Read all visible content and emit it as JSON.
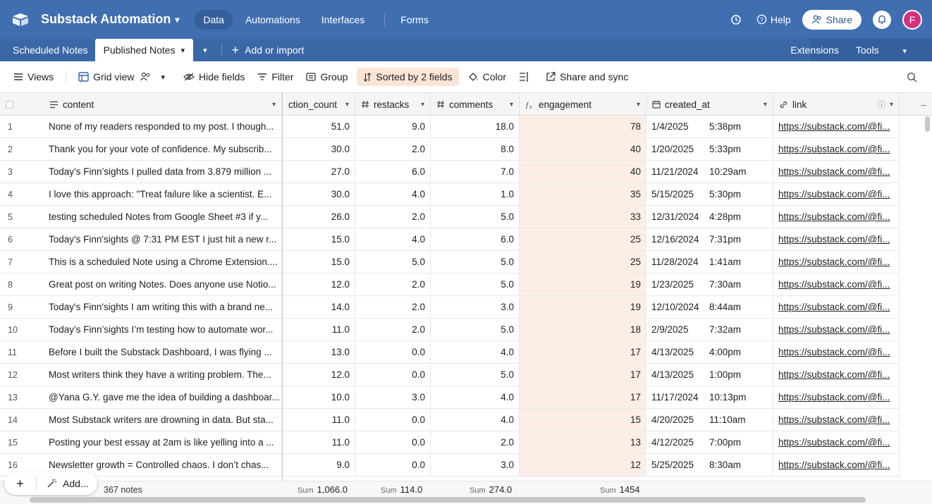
{
  "app": {
    "base_name": "Substack Automation",
    "nav": [
      "Data",
      "Automations",
      "Interfaces",
      "Forms"
    ],
    "help": "Help",
    "share": "Share",
    "avatar_letter": "F"
  },
  "tables": {
    "tabs": [
      "Scheduled Notes",
      "Published Notes"
    ],
    "add_or_import": "Add or import",
    "extensions": "Extensions",
    "tools": "Tools"
  },
  "toolbar": {
    "views": "Views",
    "grid_view": "Grid view",
    "hide_fields": "Hide fields",
    "filter": "Filter",
    "group": "Group",
    "sorted": "Sorted by 2 fields",
    "color": "Color",
    "share_sync": "Share and sync"
  },
  "columns": {
    "content": "content",
    "reaction_count": "ction_count",
    "restacks": "restacks",
    "comments": "comments",
    "engagement": "engagement",
    "created_at": "created_at",
    "link": "link"
  },
  "rows": [
    {
      "n": "1",
      "content": "None of my readers responded to my post. I though...",
      "reactions": "51.0",
      "restacks": "9.0",
      "comments": "18.0",
      "engagement": "78",
      "date": "1/4/2025",
      "time": "5:38pm",
      "link": "https://substack.com/@fi..."
    },
    {
      "n": "2",
      "content": "Thank you for your vote of confidence. My subscrib...",
      "reactions": "30.0",
      "restacks": "2.0",
      "comments": "8.0",
      "engagement": "40",
      "date": "1/20/2025",
      "time": "5:33pm",
      "link": "https://substack.com/@fi..."
    },
    {
      "n": "3",
      "content": "Today’s Finn’sights I pulled data from 3.879 million ...",
      "reactions": "27.0",
      "restacks": "6.0",
      "comments": "7.0",
      "engagement": "40",
      "date": "11/21/2024",
      "time": "10:29am",
      "link": "https://substack.com/@fi..."
    },
    {
      "n": "4",
      "content": "I love this approach: \"Treat failure like a scientist.  E...",
      "reactions": "30.0",
      "restacks": "4.0",
      "comments": "1.0",
      "engagement": "35",
      "date": "5/15/2025",
      "time": "5:30pm",
      "link": "https://substack.com/@fi..."
    },
    {
      "n": "5",
      "content": "testing scheduled Notes from Google Sheet #3 if y...",
      "reactions": "26.0",
      "restacks": "2.0",
      "comments": "5.0",
      "engagement": "33",
      "date": "12/31/2024",
      "time": "4:28pm",
      "link": "https://substack.com/@fi..."
    },
    {
      "n": "6",
      "content": "Today's Finn'sights @ 7:31 PM EST I just hit a new r...",
      "reactions": "15.0",
      "restacks": "4.0",
      "comments": "6.0",
      "engagement": "25",
      "date": "12/16/2024",
      "time": "7:31pm",
      "link": "https://substack.com/@fi..."
    },
    {
      "n": "7",
      "content": "This is a scheduled Note using a Chrome Extension....",
      "reactions": "15.0",
      "restacks": "5.0",
      "comments": "5.0",
      "engagement": "25",
      "date": "11/28/2024",
      "time": "1:41am",
      "link": "https://substack.com/@fi..."
    },
    {
      "n": "8",
      "content": "Great post on writing Notes. Does anyone use Notio...",
      "reactions": "12.0",
      "restacks": "2.0",
      "comments": "5.0",
      "engagement": "19",
      "date": "1/23/2025",
      "time": "7:30am",
      "link": "https://substack.com/@fi..."
    },
    {
      "n": "9",
      "content": "Today's Finn'sights I am writing this with a brand ne...",
      "reactions": "14.0",
      "restacks": "2.0",
      "comments": "3.0",
      "engagement": "19",
      "date": "12/10/2024",
      "time": "8:44am",
      "link": "https://substack.com/@fi..."
    },
    {
      "n": "10",
      "content": "Today’s Finn’sights I’m testing how to automate wor...",
      "reactions": "11.0",
      "restacks": "2.0",
      "comments": "5.0",
      "engagement": "18",
      "date": "2/9/2025",
      "time": "7:32am",
      "link": "https://substack.com/@fi..."
    },
    {
      "n": "11",
      "content": "Before I built the Substack Dashboard, I was flying ...",
      "reactions": "13.0",
      "restacks": "0.0",
      "comments": "4.0",
      "engagement": "17",
      "date": "4/13/2025",
      "time": "4:00pm",
      "link": "https://substack.com/@fi..."
    },
    {
      "n": "12",
      "content": "Most writers think they have a writing problem. The...",
      "reactions": "12.0",
      "restacks": "0.0",
      "comments": "5.0",
      "engagement": "17",
      "date": "4/13/2025",
      "time": "1:00pm",
      "link": "https://substack.com/@fi..."
    },
    {
      "n": "13",
      "content": "@Yana G.Y. gave me the idea of building a dashboar...",
      "reactions": "10.0",
      "restacks": "3.0",
      "comments": "4.0",
      "engagement": "17",
      "date": "11/17/2024",
      "time": "10:13pm",
      "link": "https://substack.com/@fi..."
    },
    {
      "n": "14",
      "content": "Most Substack writers are drowning in data. But sta...",
      "reactions": "11.0",
      "restacks": "0.0",
      "comments": "4.0",
      "engagement": "15",
      "date": "4/20/2025",
      "time": "11:10am",
      "link": "https://substack.com/@fi..."
    },
    {
      "n": "15",
      "content": "Posting your best essay at 2am is like yelling into a ...",
      "reactions": "11.0",
      "restacks": "0.0",
      "comments": "2.0",
      "engagement": "13",
      "date": "4/12/2025",
      "time": "7:00pm",
      "link": "https://substack.com/@fi..."
    },
    {
      "n": "16",
      "content": "Newsletter growth = Controlled chaos. I don’t chas...",
      "reactions": "9.0",
      "restacks": "0.0",
      "comments": "3.0",
      "engagement": "12",
      "date": "5/25/2025",
      "time": "8:30am",
      "link": "https://substack.com/@fi..."
    }
  ],
  "footer": {
    "add": "Add...",
    "count": "367 notes",
    "sum_label": "Sum",
    "sum_reactions": "1,066.0",
    "sum_restacks": "114.0",
    "sum_comments": "274.0",
    "sum_engagement": "1454"
  },
  "colors": {
    "topbar": "#3f6fb1",
    "engagement_bg": "#fdeee5",
    "sorted_bg": "#fde5d6",
    "avatar": "#d62f7f"
  }
}
